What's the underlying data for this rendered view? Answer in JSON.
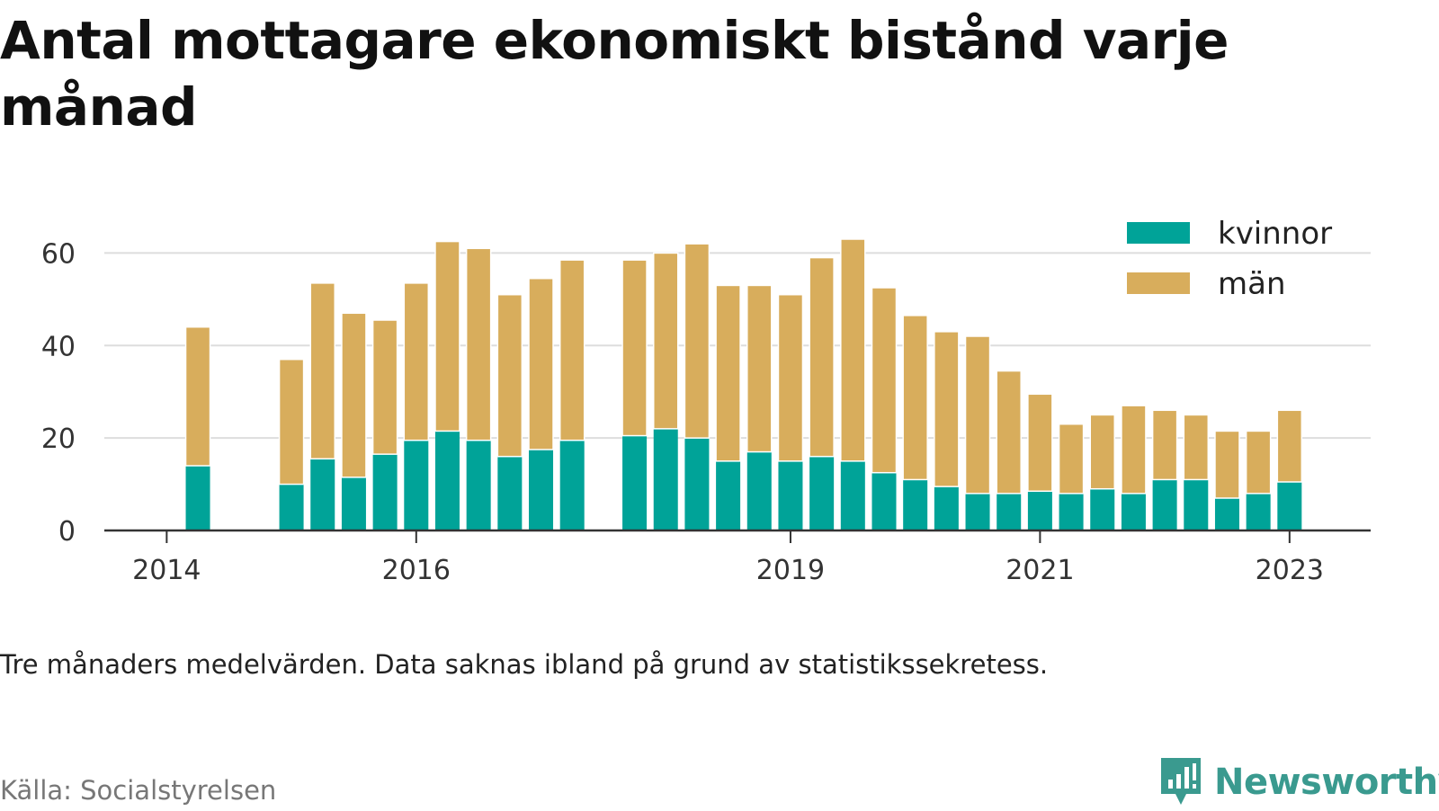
{
  "title": "Antal mottagare ekonomiskt bistånd varje månad",
  "note": "Tre månaders medelvärden. Data saknas ibland på grund av statistikssekretess.",
  "source": "Källa: Socialstyrelsen",
  "brand": {
    "name": "Newsworthy",
    "icon": "newsworthy-logo-icon"
  },
  "colors": {
    "kvinnor": "#00a398",
    "man": "#d8ad5c",
    "grid": "#dddddd",
    "axis": "#333333",
    "brand": "#3a9a8f"
  },
  "chart_data": {
    "type": "bar",
    "stacked": true,
    "title": "Antal mottagare ekonomiskt bistånd varje månad",
    "xlabel": "",
    "ylabel": "",
    "ylim": [
      0,
      70
    ],
    "yticks": [
      0,
      20,
      40,
      60
    ],
    "xticks": [
      2014,
      2016,
      2019,
      2021,
      2023
    ],
    "xlim": [
      2013.5,
      2023.65
    ],
    "grid": true,
    "legend_position": "top-right",
    "x": [
      2014.25,
      2015.0,
      2015.25,
      2015.5,
      2015.75,
      2016.0,
      2016.25,
      2016.5,
      2016.75,
      2017.0,
      2017.25,
      2017.75,
      2018.0,
      2018.25,
      2018.5,
      2018.75,
      2019.0,
      2019.25,
      2019.5,
      2019.75,
      2020.0,
      2020.25,
      2020.5,
      2020.75,
      2021.0,
      2021.25,
      2021.5,
      2021.75,
      2022.0,
      2022.25,
      2022.5,
      2022.75,
      2023.0
    ],
    "series": [
      {
        "name": "kvinnor",
        "color": "#00a398",
        "values": [
          14,
          10,
          15.5,
          11.5,
          16.5,
          19.5,
          21.5,
          19.5,
          16,
          17.5,
          19.5,
          20.5,
          22,
          20,
          15,
          17,
          15,
          16,
          15,
          12.5,
          11,
          9.5,
          8,
          8,
          8.5,
          8,
          9,
          8,
          11,
          11,
          7,
          8,
          10.5
        ]
      },
      {
        "name": "män",
        "color": "#d8ad5c",
        "values": [
          30,
          27,
          38,
          35.5,
          29,
          34,
          41,
          41.5,
          35,
          37,
          39,
          38,
          38,
          42,
          38,
          36,
          36,
          43,
          48,
          40,
          35.5,
          33.5,
          34,
          26.5,
          21,
          15,
          16,
          19,
          15,
          14,
          14.5,
          13.5,
          15.5
        ]
      }
    ]
  }
}
